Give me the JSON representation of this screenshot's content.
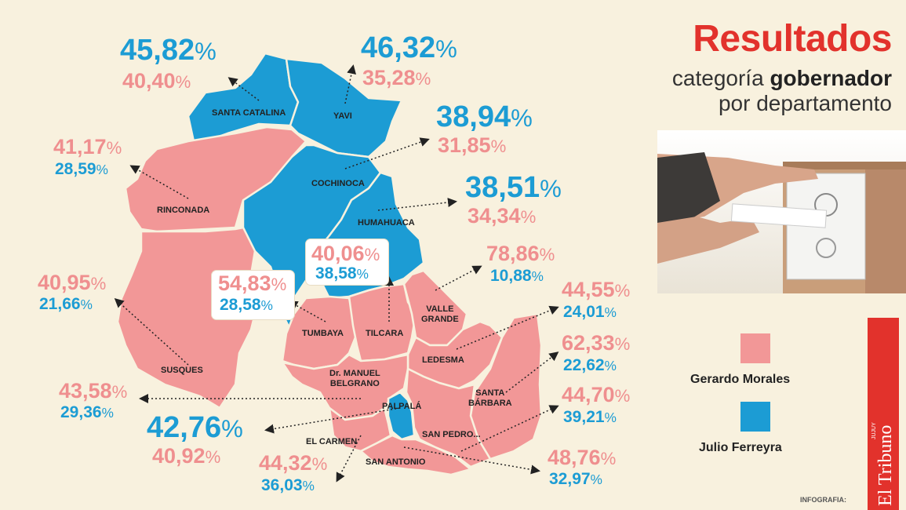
{
  "header": {
    "title": "Resultados",
    "subtitle_line1_prefix": "categoría ",
    "subtitle_line1_bold": "gobernador",
    "subtitle_line2": "por departamento"
  },
  "legend": {
    "morales": {
      "label": "Gerardo Morales",
      "color": "#f29797"
    },
    "ferreyra": {
      "label": "Julio Ferreyra",
      "color": "#1c9cd4"
    }
  },
  "colors": {
    "morales_text": "#ef8f8f",
    "ferreyra_text": "#1c9cd4",
    "title": "#e2322c"
  },
  "departments": [
    {
      "name": "SANTA CATALINA",
      "winner": "ferreyra",
      "ferreyra": "45,82",
      "morales": "40,40"
    },
    {
      "name": "YAVI",
      "winner": "ferreyra",
      "ferreyra": "46,32",
      "morales": "35,28"
    },
    {
      "name": "COCHINOCA",
      "winner": "ferreyra",
      "ferreyra": "38,94",
      "morales": "31,85"
    },
    {
      "name": "HUMAHUACA",
      "winner": "ferreyra",
      "ferreyra": "38,51",
      "morales": "34,34"
    },
    {
      "name": "RINCONADA",
      "winner": "morales",
      "morales": "41,17",
      "ferreyra": "28,59"
    },
    {
      "name": "SUSQUES",
      "winner": "morales",
      "morales": "40,95",
      "ferreyra": "21,66"
    },
    {
      "name": "TUMBAYA",
      "winner": "morales",
      "morales": "54,83",
      "ferreyra": "28,58"
    },
    {
      "name": "TILCARA",
      "winner": "morales",
      "morales": "40,06",
      "ferreyra": "38,58"
    },
    {
      "name": "VALLE GRANDE",
      "line1": "VALLE",
      "line2": "GRANDE",
      "winner": "morales",
      "morales": "78,86",
      "ferreyra": "10,88"
    },
    {
      "name": "LEDESMA",
      "winner": "morales",
      "morales": "44,55",
      "ferreyra": "24,01"
    },
    {
      "name": "SANTA BÁRBARA",
      "line1": "SANTA",
      "line2": "BÁRBARA",
      "winner": "morales",
      "morales": "62,33",
      "ferreyra": "22,62"
    },
    {
      "name": "Dr. MANUEL BELGRANO",
      "line1": "Dr. MANUEL",
      "line2": "BELGRANO",
      "winner": "morales",
      "morales": "43,58",
      "ferreyra": "29,36"
    },
    {
      "name": "PALPALÁ",
      "winner": "ferreyra",
      "ferreyra": "42,76",
      "morales": "40,92"
    },
    {
      "name": "SAN PEDRO",
      "label": "SAN PEDRO...",
      "winner": "morales",
      "morales": "44,70",
      "ferreyra": "39,21"
    },
    {
      "name": "EL CARMEN",
      "winner": "morales",
      "morales": "44,32",
      "ferreyra": "36,03"
    },
    {
      "name": "SAN ANTONIO",
      "winner": "morales",
      "morales": "48,76",
      "ferreyra": "32,97"
    }
  ],
  "percent_sign": "%",
  "brand": {
    "name": "El Tribuno",
    "small": "JUJUY"
  },
  "credit": "INFOGRAFIA:"
}
